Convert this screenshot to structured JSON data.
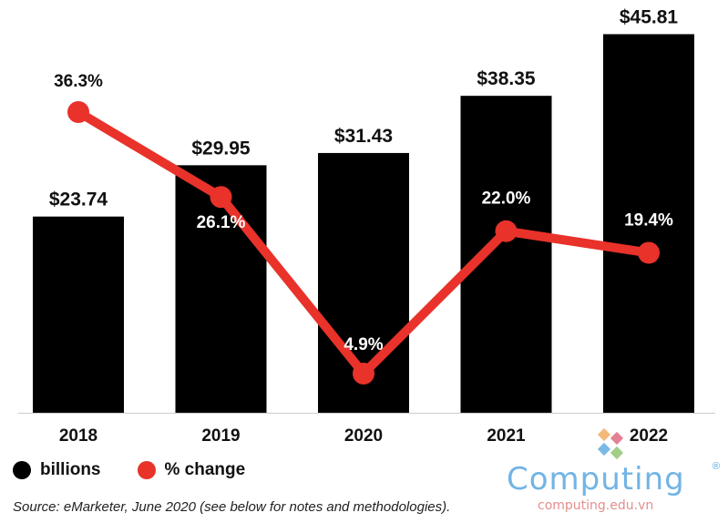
{
  "chart_data": {
    "type": "bar",
    "categories": [
      "2018",
      "2019",
      "2020",
      "2021",
      "2022"
    ],
    "series": [
      {
        "name": "billions",
        "type": "bar",
        "values": [
          23.74,
          29.95,
          31.43,
          38.35,
          45.81
        ],
        "labels": [
          "$23.74",
          "$29.95",
          "$31.43",
          "$38.35",
          "$45.81"
        ],
        "color": "#000000"
      },
      {
        "name": "% change",
        "type": "line",
        "values": [
          36.3,
          26.1,
          4.9,
          22.0,
          19.4
        ],
        "labels": [
          "36.3%",
          "26.1%",
          "4.9%",
          "22.0%",
          "19.4%"
        ],
        "color": "#e8322a"
      }
    ],
    "ylim": [
      0,
      50
    ],
    "ylim_secondary": [
      0,
      60
    ],
    "grid": false,
    "legend_position": "bottom-left"
  },
  "legend": {
    "billions": "billions",
    "pct": "% change"
  },
  "source": "Source: eMarketer, June 2020 (see below for notes and methodologies).",
  "watermark": {
    "name": "Computing",
    "site": "computing.edu.vn",
    "reg": "®"
  }
}
